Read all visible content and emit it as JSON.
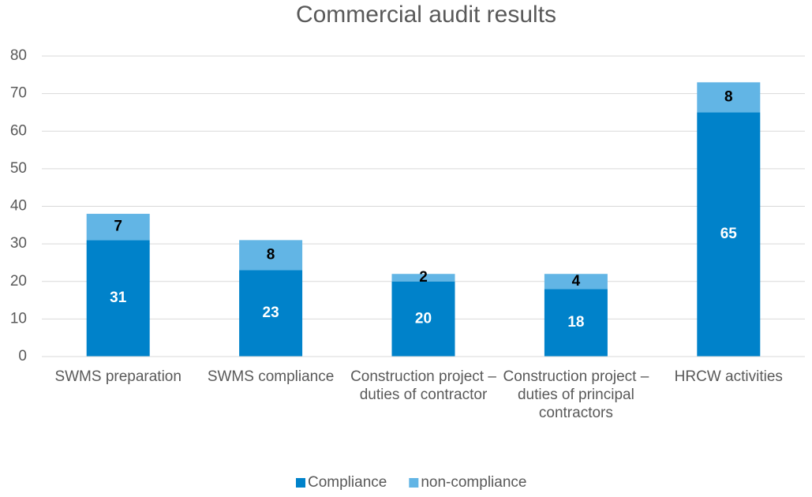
{
  "chart_data": {
    "type": "stacked_bar",
    "title": "Commercial audit results",
    "categories": [
      "SWMS preparation",
      "SWMS compliance",
      "Construction project – duties of contractor",
      "Construction project – duties of principal contractors",
      "HRCW activities"
    ],
    "series": [
      {
        "name": "Compliance",
        "color": "#0082ca",
        "label_color": "#ffffff",
        "values": [
          31,
          23,
          20,
          18,
          65
        ]
      },
      {
        "name": "non-compliance",
        "color": "#62b5e5",
        "label_color": "#000000",
        "values": [
          7,
          8,
          2,
          4,
          8
        ]
      }
    ],
    "ylim": [
      0,
      80
    ],
    "yticks": [
      0,
      10,
      20,
      30,
      40,
      50,
      60,
      70,
      80
    ],
    "grid": true,
    "legend": "bottom"
  }
}
